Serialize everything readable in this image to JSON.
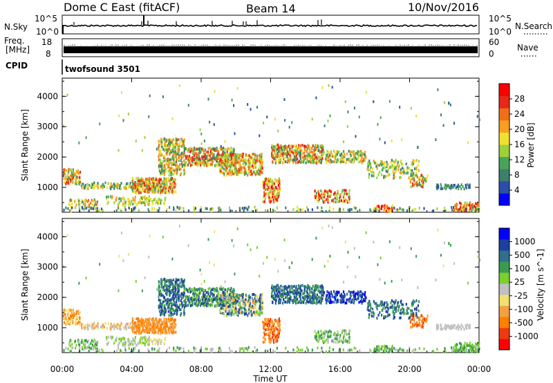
{
  "header": {
    "radar_title": "Dome C East (fitACF)",
    "beam": "Beam 14",
    "date": "10/Nov/2016"
  },
  "top_panels": {
    "nsky_label": "N.Sky",
    "nsearch_label": "N.Search",
    "nsky_ticks": [
      "10^5",
      "10^0"
    ],
    "nsearch_ticks": [
      "10^5",
      "10^0"
    ],
    "freq_label_line1": "Freq.",
    "freq_label_line2": "[MHz]",
    "freq_ticks": [
      "18",
      "8"
    ],
    "nave_label": "Nave",
    "nave_ticks": [
      "60",
      "0"
    ],
    "cpid_label": "CPID",
    "cpid_value": "twofsound 3501"
  },
  "colors": {
    "power": [
      "#0000ff",
      "#2b4fa8",
      "#3d7f6d",
      "#4aa35a",
      "#9bd23c",
      "#f0e030",
      "#f7a020",
      "#f07018",
      "#e82818",
      "#ff0000"
    ],
    "velocity": [
      "#ff0000",
      "#ee3a10",
      "#ff8000",
      "#f5a040",
      "#f2e070",
      "#c0c0c0",
      "#7bd030",
      "#3a9a50",
      "#2f6f8a",
      "#1f3fa0",
      "#0000ff"
    ]
  },
  "chart_data": [
    {
      "type": "heatmap",
      "name": "power",
      "ylabel": "Slant Range [km]",
      "xlabel": "",
      "ylim": [
        180,
        4600
      ],
      "y_ticks": [
        "4000",
        "3000",
        "2000",
        "1000"
      ],
      "x_ticks": [
        "00:00",
        "04:00",
        "08:00",
        "12:00",
        "16:00",
        "20:00",
        "00:00"
      ],
      "colorbar_label": "Power [dB]",
      "colorbar_ticks": [
        "28",
        "24",
        "20",
        "16",
        "12",
        "8",
        "4"
      ]
    },
    {
      "type": "heatmap",
      "name": "velocity",
      "ylabel": "Slant Range [km]",
      "xlabel": "Time UT",
      "ylim": [
        180,
        4600
      ],
      "y_ticks": [
        "4000",
        "3000",
        "2000",
        "1000"
      ],
      "x_ticks": [
        "00:00",
        "04:00",
        "08:00",
        "12:00",
        "16:00",
        "20:00",
        "00:00"
      ],
      "colorbar_label": "Velocity [m s^-1]",
      "colorbar_ticks": [
        "1000",
        "500",
        "100",
        "25",
        "-25",
        "-100",
        "-500",
        "-1000"
      ]
    }
  ]
}
